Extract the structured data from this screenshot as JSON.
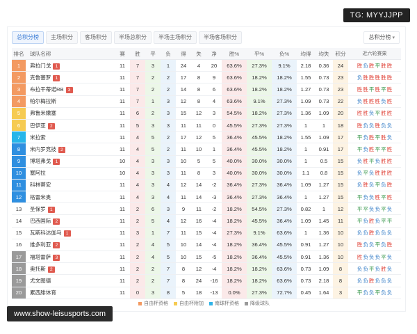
{
  "watermark_top": "TG: MYYJJPP",
  "watermark_bottom": "www.show-leisusports.com",
  "tabs": [
    "总积分榜",
    "主场积分",
    "客场积分",
    "半场总积分",
    "半场主场积分",
    "半场客场积分"
  ],
  "active_tab": 0,
  "select_label": "总积分榜",
  "columns": [
    "排名",
    "球队名称",
    "赛",
    "胜",
    "平",
    "负",
    "得",
    "失",
    "净",
    "胜%",
    "平%",
    "负%",
    "均得",
    "均失",
    "积分",
    "近六轮赛果"
  ],
  "rows": [
    {
      "rank": "1",
      "team": "弗拉门戈",
      "badge": "1",
      "p": "11",
      "w": "7",
      "d": "3",
      "l": "1",
      "gf": "24",
      "ga": "4",
      "gd": "20",
      "wp": "63.6%",
      "dp": "27.3%",
      "lp": "9.1%",
      "avgf": "2.18",
      "avga": "0.36",
      "pts": "24",
      "form": "胜负胜平胜胜",
      "zone": "orange"
    },
    {
      "rank": "2",
      "team": "克鲁塞罗",
      "badge": "1",
      "p": "11",
      "w": "7",
      "d": "2",
      "l": "2",
      "gf": "17",
      "ga": "8",
      "gd": "9",
      "wp": "63.6%",
      "dp": "18.2%",
      "lp": "18.2%",
      "avgf": "1.55",
      "avga": "0.73",
      "pts": "23",
      "form": "负胜胜胜胜胜",
      "zone": "orange"
    },
    {
      "rank": "3",
      "team": "布拉干蒂诺RB",
      "badge": "3",
      "p": "11",
      "w": "7",
      "d": "2",
      "l": "2",
      "gf": "14",
      "ga": "8",
      "gd": "6",
      "wp": "63.6%",
      "dp": "18.2%",
      "lp": "18.2%",
      "avgf": "1.27",
      "avga": "0.73",
      "pts": "23",
      "form": "胜胜平胜平胜",
      "zone": "orange"
    },
    {
      "rank": "4",
      "team": "帕尔梅拉斯",
      "badge": "",
      "p": "11",
      "w": "7",
      "d": "1",
      "l": "3",
      "gf": "12",
      "ga": "8",
      "gd": "4",
      "wp": "63.6%",
      "dp": "9.1%",
      "lp": "27.3%",
      "avgf": "1.09",
      "avga": "0.73",
      "pts": "22",
      "form": "负胜胜胜负胜",
      "zone": "orange"
    },
    {
      "rank": "5",
      "team": "弗鲁米嫩塞",
      "badge": "",
      "p": "11",
      "w": "6",
      "d": "2",
      "l": "3",
      "gf": "15",
      "ga": "12",
      "gd": "3",
      "wp": "54.5%",
      "dp": "18.2%",
      "lp": "27.3%",
      "avgf": "1.36",
      "avga": "1.09",
      "pts": "20",
      "form": "胜胜负平胜胜",
      "zone": "yellow"
    },
    {
      "rank": "6",
      "team": "巴伊亚",
      "badge": "2",
      "p": "11",
      "w": "5",
      "d": "3",
      "l": "3",
      "gf": "11",
      "ga": "11",
      "gd": "0",
      "wp": "45.5%",
      "dp": "27.3%",
      "lp": "27.3%",
      "avgf": "1",
      "avga": "1",
      "pts": "18",
      "form": "胜负负胜负负",
      "zone": "yellow"
    },
    {
      "rank": "7",
      "team": "米拉索",
      "badge": "",
      "p": "11",
      "w": "4",
      "d": "5",
      "l": "2",
      "gf": "17",
      "ga": "12",
      "gd": "5",
      "wp": "36.4%",
      "dp": "45.5%",
      "lp": "18.2%",
      "avgf": "1.55",
      "avga": "1.09",
      "pts": "17",
      "form": "平负胜平胜负",
      "zone": "cyan"
    },
    {
      "rank": "8",
      "team": "米内罗竞技",
      "badge": "2",
      "p": "11",
      "w": "4",
      "d": "5",
      "l": "2",
      "gf": "11",
      "ga": "10",
      "gd": "1",
      "wp": "36.4%",
      "dp": "45.5%",
      "lp": "18.2%",
      "avgf": "1",
      "avga": "0.91",
      "pts": "17",
      "form": "平负胜平平胜",
      "zone": "blue"
    },
    {
      "rank": "9",
      "team": "博塔弗戈",
      "badge": "1",
      "p": "10",
      "w": "4",
      "d": "3",
      "l": "3",
      "gf": "10",
      "ga": "5",
      "gd": "5",
      "wp": "40.0%",
      "dp": "30.0%",
      "lp": "30.0%",
      "avgf": "1",
      "avga": "0.5",
      "pts": "15",
      "form": "负胜平负胜胜",
      "zone": "blue"
    },
    {
      "rank": "10",
      "team": "塞阿拉",
      "badge": "",
      "p": "10",
      "w": "4",
      "d": "3",
      "l": "3",
      "gf": "11",
      "ga": "8",
      "gd": "3",
      "wp": "40.0%",
      "dp": "30.0%",
      "lp": "30.0%",
      "avgf": "1.1",
      "avga": "0.8",
      "pts": "15",
      "form": "负平负胜胜胜",
      "zone": "blue"
    },
    {
      "rank": "11",
      "team": "科林蒂安",
      "badge": "",
      "p": "11",
      "w": "4",
      "d": "3",
      "l": "4",
      "gf": "12",
      "ga": "14",
      "gd": "-2",
      "wp": "36.4%",
      "dp": "27.3%",
      "lp": "36.4%",
      "avgf": "1.09",
      "avga": "1.27",
      "pts": "15",
      "form": "负胜负平负胜",
      "zone": "blue"
    },
    {
      "rank": "12",
      "team": "格雷米奥",
      "badge": "",
      "p": "11",
      "w": "4",
      "d": "3",
      "l": "4",
      "gf": "11",
      "ga": "14",
      "gd": "-3",
      "wp": "36.4%",
      "dp": "27.3%",
      "lp": "36.4%",
      "avgf": "1",
      "avga": "1.27",
      "pts": "15",
      "form": "平负负胜平胜",
      "zone": "blue"
    },
    {
      "rank": "13",
      "team": "圣保罗",
      "badge": "1",
      "p": "11",
      "w": "2",
      "d": "6",
      "l": "3",
      "gf": "9",
      "ga": "11",
      "gd": "-2",
      "wp": "18.2%",
      "dp": "54.5%",
      "lp": "27.3%",
      "avgf": "0.82",
      "avga": "1",
      "pts": "12",
      "form": "平平负负平负",
      "zone": "none"
    },
    {
      "rank": "14",
      "team": "巴西国际",
      "badge": "2",
      "p": "11",
      "w": "2",
      "d": "5",
      "l": "4",
      "gf": "12",
      "ga": "16",
      "gd": "-4",
      "wp": "18.2%",
      "dp": "45.5%",
      "lp": "36.4%",
      "avgf": "1.09",
      "avga": "1.45",
      "pts": "11",
      "form": "平负胜负平平",
      "zone": "none"
    },
    {
      "rank": "15",
      "team": "瓦斯科达伽马",
      "badge": "1",
      "p": "11",
      "w": "3",
      "d": "1",
      "l": "7",
      "gf": "11",
      "ga": "15",
      "gd": "-4",
      "wp": "27.3%",
      "dp": "9.1%",
      "lp": "63.6%",
      "avgf": "1",
      "avga": "1.36",
      "pts": "10",
      "form": "负负胜负负负",
      "zone": "none"
    },
    {
      "rank": "16",
      "team": "维多利亚",
      "badge": "2",
      "p": "11",
      "w": "2",
      "d": "4",
      "l": "5",
      "gf": "10",
      "ga": "14",
      "gd": "-4",
      "wp": "18.2%",
      "dp": "36.4%",
      "lp": "45.5%",
      "avgf": "0.91",
      "avga": "1.27",
      "pts": "10",
      "form": "胜负负平负胜",
      "zone": "none"
    },
    {
      "rank": "17",
      "team": "福塔雷萨",
      "badge": "3",
      "p": "11",
      "w": "2",
      "d": "4",
      "l": "5",
      "gf": "10",
      "ga": "15",
      "gd": "-5",
      "wp": "18.2%",
      "dp": "36.4%",
      "lp": "45.5%",
      "avgf": "0.91",
      "avga": "1.36",
      "pts": "10",
      "form": "胜负负负平负",
      "zone": "gray"
    },
    {
      "rank": "18",
      "team": "奥托斯",
      "badge": "2",
      "p": "11",
      "w": "2",
      "d": "2",
      "l": "7",
      "gf": "8",
      "ga": "12",
      "gd": "-4",
      "wp": "18.2%",
      "dp": "18.2%",
      "lp": "63.6%",
      "avgf": "0.73",
      "avga": "1.09",
      "pts": "8",
      "form": "负负平负胜负",
      "zone": "gray"
    },
    {
      "rank": "19",
      "team": "尤文图德",
      "badge": "",
      "p": "11",
      "w": "2",
      "d": "2",
      "l": "7",
      "gf": "8",
      "ga": "24",
      "gd": "-16",
      "wp": "18.2%",
      "dp": "18.2%",
      "lp": "63.6%",
      "avgf": "0.73",
      "avga": "2.18",
      "pts": "8",
      "form": "负负胜负负负",
      "zone": "gray"
    },
    {
      "rank": "20",
      "team": "累西腓体育",
      "badge": "",
      "p": "11",
      "w": "0",
      "d": "3",
      "l": "8",
      "gf": "5",
      "ga": "18",
      "gd": "-13",
      "wp": "0.0%",
      "dp": "27.3%",
      "lp": "72.7%",
      "avgf": "0.45",
      "avga": "1.64",
      "pts": "3",
      "form": "平负负平负负",
      "zone": "gray"
    }
  ],
  "legend": [
    {
      "label": "自由杯资格",
      "color": "#f39a62"
    },
    {
      "label": "自由杯附加",
      "color": "#f6cb52"
    },
    {
      "label": "南球杯资格",
      "color": "#2fb3e8"
    },
    {
      "label": "降级球队",
      "color": "#9a9a9a"
    }
  ],
  "zone_colors": {
    "orange": "#f39a62",
    "yellow": "#f6cb52",
    "cyan": "#27b6ea",
    "blue": "#2f8fe0",
    "gray": "#9a9a9a",
    "none": "#ffffff"
  }
}
